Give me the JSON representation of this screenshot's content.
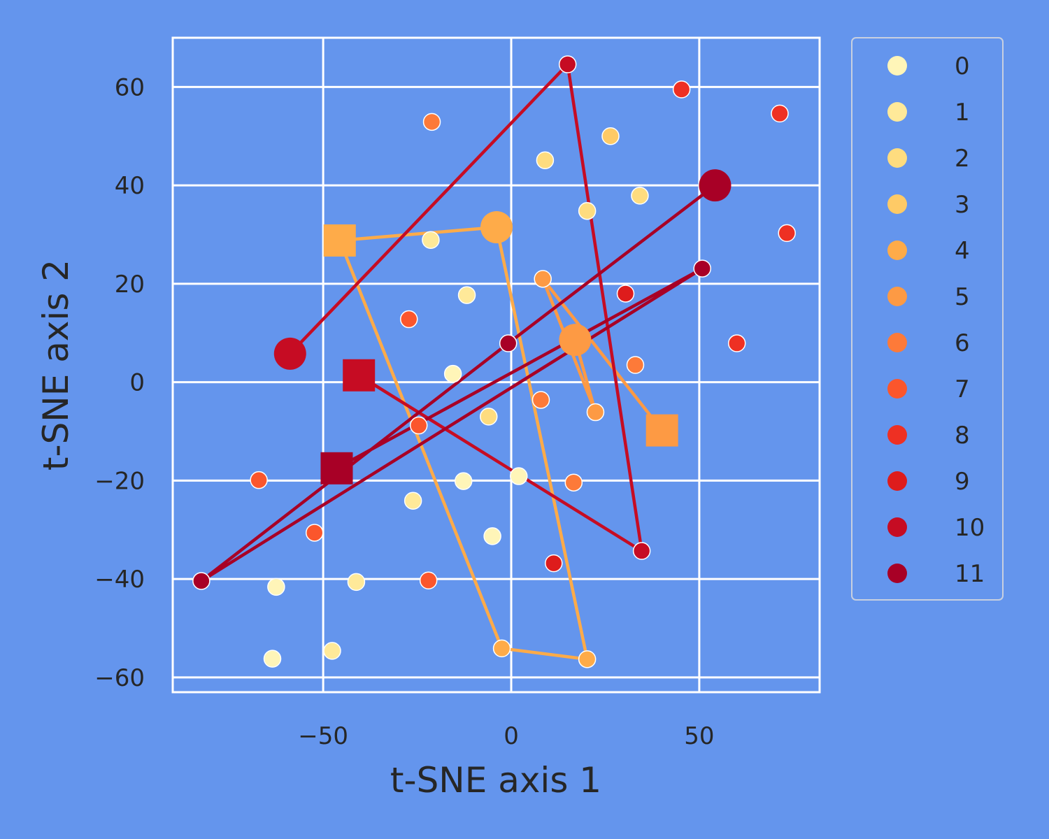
{
  "chart_data": {
    "type": "scatter",
    "xlabel": "t-SNE axis 1",
    "ylabel": "t-SNE axis 2",
    "xlim": [
      -90,
      82
    ],
    "ylim": [
      -63,
      70
    ],
    "xticks": [
      -50,
      0,
      50
    ],
    "yticks": [
      -60,
      -40,
      -20,
      0,
      20,
      40,
      60
    ],
    "xtick_labels": [
      "−50",
      "0",
      "50"
    ],
    "ytick_labels": [
      "−60",
      "−40",
      "−20",
      "0",
      "20",
      "40",
      "60"
    ],
    "grid": true,
    "legend_position": "outside-right",
    "background_color": "#6495ED",
    "series": [
      {
        "name": "0",
        "color": "#FFF5B8",
        "points": [
          [
            -15.5,
            1.7
          ],
          [
            -5.0,
            -31.3
          ],
          [
            2.0,
            -19.1
          ],
          [
            -12.7,
            -20.1
          ],
          [
            -62.5,
            -41.6
          ],
          [
            -63.5,
            -56.2
          ]
        ]
      },
      {
        "name": "1",
        "color": "#FFE999",
        "points": [
          [
            -21.4,
            28.9
          ],
          [
            -11.8,
            17.7
          ],
          [
            -26.1,
            -24.1
          ],
          [
            -41.2,
            -40.6
          ],
          [
            -47.6,
            -54.6
          ]
        ]
      },
      {
        "name": "2",
        "color": "#FEDC7F",
        "points": [
          [
            9.0,
            45.1
          ],
          [
            20.2,
            34.8
          ],
          [
            34.2,
            37.9
          ],
          [
            -6.0,
            -7.0
          ]
        ]
      },
      {
        "name": "3",
        "color": "#FECA66",
        "points": [
          [
            26.4,
            50.0
          ]
        ]
      },
      {
        "name": "4",
        "color": "#FEAB49",
        "points": [
          [
            -3.9,
            31.5
          ],
          [
            -2.5,
            -54.1
          ],
          [
            20.2,
            -56.3
          ],
          [
            -45.6,
            28.8
          ]
        ],
        "trajectory": [
          3,
          0,
          2,
          1,
          3
        ],
        "start": 0,
        "end": 3
      },
      {
        "name": "5",
        "color": "#FD9A44",
        "points": [
          [
            17.0,
            8.6
          ],
          [
            8.4,
            21.0
          ],
          [
            22.4,
            -6.1
          ],
          [
            40.1,
            -9.8
          ]
        ],
        "trajectory": [
          0,
          2,
          1,
          3
        ],
        "start": 0,
        "end": 3
      },
      {
        "name": "6",
        "color": "#FD7A39",
        "points": [
          [
            -21.1,
            52.9
          ],
          [
            33.0,
            3.5
          ],
          [
            7.9,
            -3.6
          ],
          [
            16.6,
            -20.4
          ]
        ]
      },
      {
        "name": "7",
        "color": "#FB562C",
        "points": [
          [
            -27.2,
            12.8
          ],
          [
            -24.6,
            -8.8
          ],
          [
            -67.1,
            -19.9
          ],
          [
            -52.3,
            -30.6
          ],
          [
            -22.0,
            -40.3
          ]
        ]
      },
      {
        "name": "8",
        "color": "#EE3023",
        "points": [
          [
            45.3,
            59.5
          ],
          [
            71.4,
            54.6
          ],
          [
            73.3,
            30.3
          ],
          [
            60.0,
            7.9
          ]
        ]
      },
      {
        "name": "9",
        "color": "#DE1C1C",
        "points": [
          [
            30.4,
            18.0
          ],
          [
            11.3,
            -36.8
          ]
        ]
      },
      {
        "name": "10",
        "color": "#C60C23",
        "points": [
          [
            -58.8,
            5.8
          ],
          [
            15.0,
            64.6
          ],
          [
            34.7,
            -34.3
          ],
          [
            -40.5,
            1.4
          ]
        ],
        "trajectory": [
          0,
          1,
          2,
          3
        ],
        "start": 0,
        "end": 3
      },
      {
        "name": "11",
        "color": "#A80026",
        "points": [
          [
            54.2,
            40.0
          ],
          [
            -0.8,
            7.9
          ],
          [
            -82.4,
            -40.4
          ],
          [
            50.8,
            23.1
          ],
          [
            -46.4,
            -17.5
          ]
        ],
        "trajectory": [
          0,
          1,
          2,
          3,
          4
        ],
        "start": 0,
        "end": 4
      }
    ]
  }
}
